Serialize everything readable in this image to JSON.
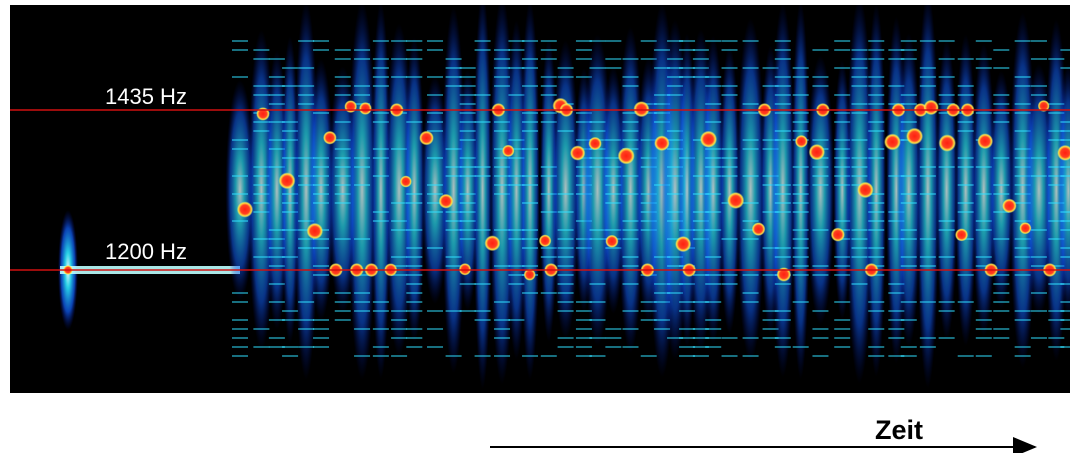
{
  "spectrogram": {
    "upper_label": "1435 Hz",
    "lower_label": "1200 Hz"
  },
  "time_axis": {
    "label": "Zeit"
  }
}
